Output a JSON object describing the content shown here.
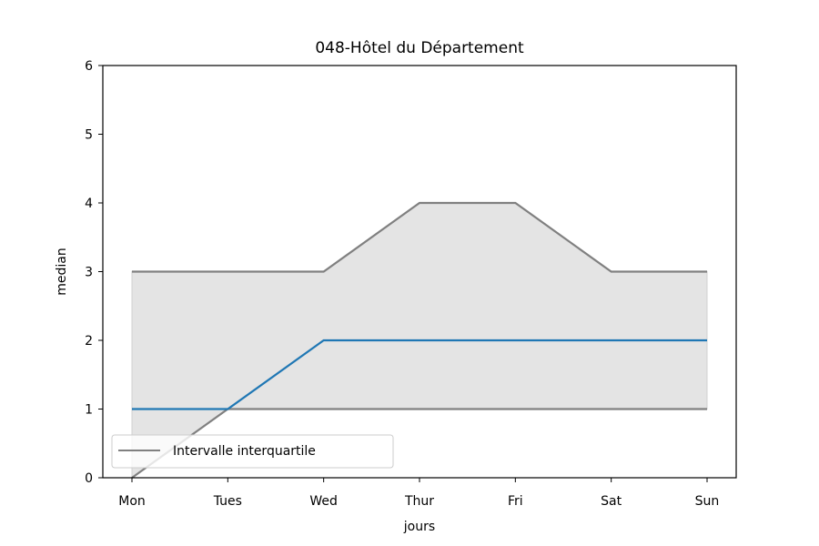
{
  "chart_data": {
    "type": "line",
    "title": "048-Hôtel du Département",
    "xlabel": "jours",
    "ylabel": "median",
    "categories": [
      "Mon",
      "Tues",
      "Wed",
      "Thur",
      "Fri",
      "Sat",
      "Sun"
    ],
    "ylim": [
      0,
      6
    ],
    "yticks": [
      0,
      1,
      2,
      3,
      4,
      5,
      6
    ],
    "grid": false,
    "legend_position": "lower-left",
    "series": [
      {
        "role": "median",
        "color": "#1f77b4",
        "values": [
          1,
          1,
          2,
          2,
          2,
          2,
          2
        ]
      },
      {
        "role": "q1",
        "name": "Intervalle interquartile",
        "color": "#808080",
        "values": [
          0,
          1,
          1,
          1,
          1,
          1,
          1
        ]
      },
      {
        "role": "q3",
        "color": "#808080",
        "values": [
          3,
          3,
          3,
          4,
          4,
          3,
          3
        ]
      }
    ],
    "band_fill": "#e4e4e4",
    "legend": [
      {
        "label": "Intervalle interquartile",
        "color": "#808080"
      }
    ]
  }
}
